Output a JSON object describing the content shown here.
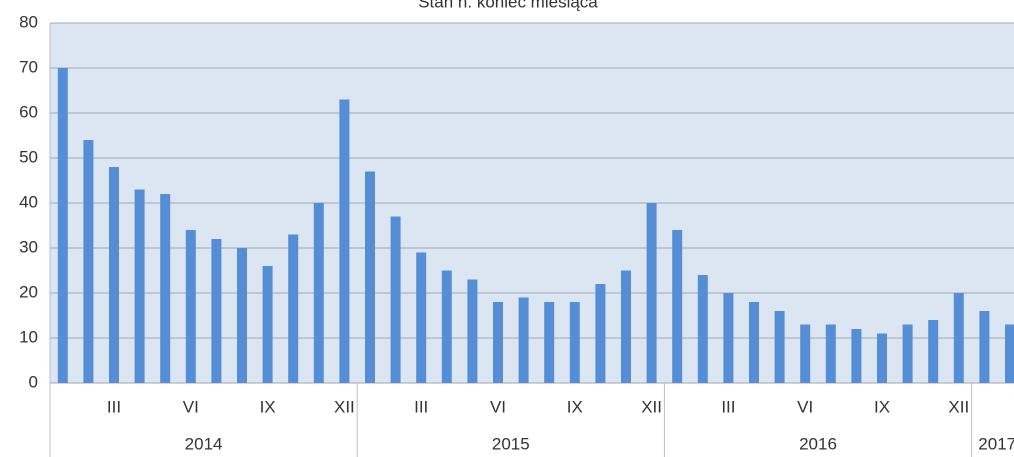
{
  "chart_data": {
    "type": "bar",
    "title": "Stan n. koniec miesiąca",
    "categories": [
      null,
      null,
      "III",
      null,
      null,
      "VI",
      null,
      null,
      "IX",
      null,
      null,
      "XII",
      null,
      null,
      "III",
      null,
      null,
      "VI",
      null,
      null,
      "IX",
      null,
      null,
      "XII",
      null,
      null,
      "III",
      null,
      null,
      "VI",
      null,
      null,
      "IX",
      null,
      null,
      "XII",
      null,
      null
    ],
    "category_groups": [
      {
        "name": "2014",
        "size": 12
      },
      {
        "name": "2015",
        "size": 12
      },
      {
        "name": "2016",
        "size": 12
      },
      {
        "name": "2017",
        "size": 2
      }
    ],
    "values": [
      70,
      54,
      48,
      43,
      42,
      34,
      32,
      30,
      26,
      33,
      40,
      63,
      47,
      37,
      29,
      25,
      23,
      18,
      19,
      18,
      18,
      22,
      25,
      40,
      34,
      24,
      20,
      18,
      16,
      13,
      13,
      12,
      11,
      13,
      14,
      20,
      16,
      13
    ],
    "color": "#558ed5",
    "ylim": [
      0,
      80
    ],
    "yticks": [
      0,
      10,
      20,
      30,
      40,
      50,
      60,
      70,
      80
    ],
    "grid": true
  }
}
